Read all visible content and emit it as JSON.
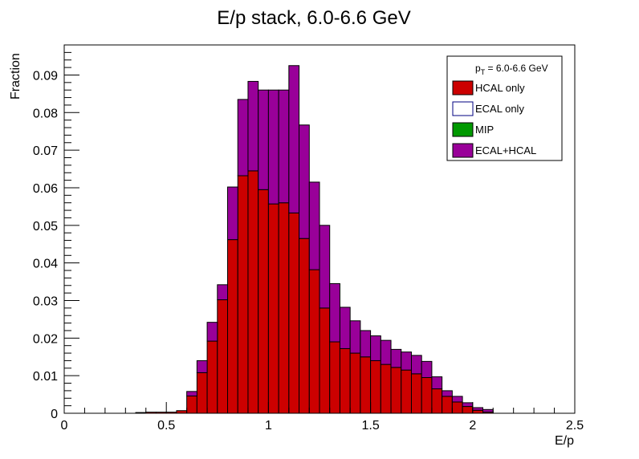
{
  "chart_data": {
    "type": "histogram-stack",
    "title": "E/p stack, 6.0-6.6 GeV",
    "xlabel": "E/p",
    "ylabel": "Fraction",
    "xlim": [
      0,
      2.5
    ],
    "ylim": [
      0,
      0.098
    ],
    "bin_width": 0.05,
    "x_ticks": [
      0,
      0.5,
      1,
      1.5,
      2,
      2.5
    ],
    "x_tick_labels": [
      "0",
      "0.5",
      "1",
      "1.5",
      "2",
      "2.5"
    ],
    "y_ticks": [
      0,
      0.01,
      0.02,
      0.03,
      0.04,
      0.05,
      0.06,
      0.07,
      0.08,
      0.09
    ],
    "y_tick_labels": [
      "0",
      "0.01",
      "0.02",
      "0.03",
      "0.04",
      "0.05",
      "0.06",
      "0.07",
      "0.08",
      "0.09"
    ],
    "grid": false,
    "legend_position": "top-right",
    "legend_header": {
      "main": "p",
      "sub": "T",
      "rest": " = 6.0-6.6 GeV"
    },
    "series": [
      {
        "name": "HCAL only",
        "color": "#cc0000",
        "bins": [
          {
            "x0": 0.35,
            "y": 0.0002
          },
          {
            "x0": 0.4,
            "y": 0.0003
          },
          {
            "x0": 0.45,
            "y": 0.0003
          },
          {
            "x0": 0.5,
            "y": 0.0003
          },
          {
            "x0": 0.55,
            "y": 0.0007
          },
          {
            "x0": 0.6,
            "y": 0.0046
          },
          {
            "x0": 0.65,
            "y": 0.0108
          },
          {
            "x0": 0.7,
            "y": 0.0192
          },
          {
            "x0": 0.75,
            "y": 0.0302
          },
          {
            "x0": 0.8,
            "y": 0.0462
          },
          {
            "x0": 0.85,
            "y": 0.0632
          },
          {
            "x0": 0.9,
            "y": 0.0645
          },
          {
            "x0": 0.95,
            "y": 0.0595
          },
          {
            "x0": 1.0,
            "y": 0.0557
          },
          {
            "x0": 1.05,
            "y": 0.056
          },
          {
            "x0": 1.1,
            "y": 0.0533
          },
          {
            "x0": 1.15,
            "y": 0.0465
          },
          {
            "x0": 1.2,
            "y": 0.0382
          },
          {
            "x0": 1.25,
            "y": 0.028
          },
          {
            "x0": 1.3,
            "y": 0.019
          },
          {
            "x0": 1.35,
            "y": 0.0172
          },
          {
            "x0": 1.4,
            "y": 0.016
          },
          {
            "x0": 1.45,
            "y": 0.015
          },
          {
            "x0": 1.5,
            "y": 0.014
          },
          {
            "x0": 1.55,
            "y": 0.013
          },
          {
            "x0": 1.6,
            "y": 0.0122
          },
          {
            "x0": 1.65,
            "y": 0.0115
          },
          {
            "x0": 1.7,
            "y": 0.0105
          },
          {
            "x0": 1.75,
            "y": 0.0095
          },
          {
            "x0": 1.8,
            "y": 0.0065
          },
          {
            "x0": 1.85,
            "y": 0.0045
          },
          {
            "x0": 1.9,
            "y": 0.003
          },
          {
            "x0": 1.95,
            "y": 0.0018
          },
          {
            "x0": 2.0,
            "y": 0.0008
          },
          {
            "x0": 2.05,
            "y": 0.0003
          }
        ]
      },
      {
        "name": "ECAL only",
        "color": "#ffffff",
        "bins": []
      },
      {
        "name": "MIP",
        "color": "#009900",
        "bins": []
      },
      {
        "name": "ECAL+HCAL",
        "color": "#990099",
        "bins": [
          {
            "x0": 0.6,
            "y": 0.0012
          },
          {
            "x0": 0.65,
            "y": 0.0032
          },
          {
            "x0": 0.7,
            "y": 0.005
          },
          {
            "x0": 0.75,
            "y": 0.004
          },
          {
            "x0": 0.8,
            "y": 0.014
          },
          {
            "x0": 0.85,
            "y": 0.0203
          },
          {
            "x0": 0.9,
            "y": 0.0238
          },
          {
            "x0": 0.95,
            "y": 0.0265
          },
          {
            "x0": 1.0,
            "y": 0.0303
          },
          {
            "x0": 1.05,
            "y": 0.03
          },
          {
            "x0": 1.1,
            "y": 0.0392
          },
          {
            "x0": 1.15,
            "y": 0.0302
          },
          {
            "x0": 1.2,
            "y": 0.0233
          },
          {
            "x0": 1.25,
            "y": 0.022
          },
          {
            "x0": 1.3,
            "y": 0.0155
          },
          {
            "x0": 1.35,
            "y": 0.011
          },
          {
            "x0": 1.4,
            "y": 0.0086
          },
          {
            "x0": 1.45,
            "y": 0.007
          },
          {
            "x0": 1.5,
            "y": 0.0066
          },
          {
            "x0": 1.55,
            "y": 0.0064
          },
          {
            "x0": 1.6,
            "y": 0.0048
          },
          {
            "x0": 1.65,
            "y": 0.0048
          },
          {
            "x0": 1.7,
            "y": 0.0049
          },
          {
            "x0": 1.75,
            "y": 0.0043
          },
          {
            "x0": 1.8,
            "y": 0.0032
          },
          {
            "x0": 1.85,
            "y": 0.0015
          },
          {
            "x0": 1.9,
            "y": 0.0015
          },
          {
            "x0": 1.95,
            "y": 0.001
          },
          {
            "x0": 2.0,
            "y": 0.0007
          },
          {
            "x0": 2.05,
            "y": 0.0007
          }
        ]
      }
    ]
  }
}
